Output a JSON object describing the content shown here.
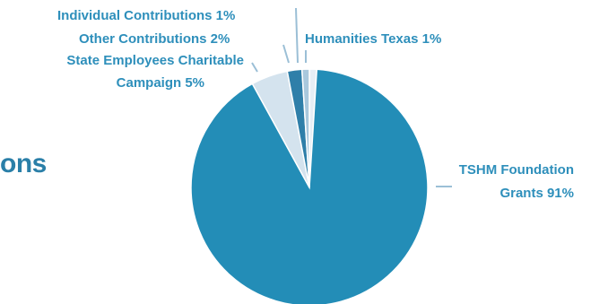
{
  "page": {
    "partial_heading": "ons"
  },
  "colors": {
    "tshm": "#238db7",
    "state": "#d4e3ee",
    "other": "#2f7fa9",
    "individual": "#a9c8dd",
    "humanities": "#e6eef5",
    "label": "#2e8fbb",
    "leader": "#9bbfd6"
  },
  "chart_data": {
    "type": "pie",
    "title": "",
    "slices": [
      {
        "name": "Humanities Texas",
        "percent": 1,
        "label": "Humanities Texas 1%",
        "color_key": "humanities"
      },
      {
        "name": "TSHM Foundation Grants",
        "percent": 91,
        "label_lines": [
          "TSHM Foundation",
          "Grants 91%"
        ],
        "color_key": "tshm"
      },
      {
        "name": "State Employees Charitable Campaign",
        "percent": 5,
        "label_lines": [
          "State Employees Charitable",
          "Campaign 5%"
        ],
        "color_key": "state"
      },
      {
        "name": "Other Contributions",
        "percent": 2,
        "label": "Other Contributions 2%",
        "color_key": "other"
      },
      {
        "name": "Individual Contributions",
        "percent": 1,
        "label": "Individual Contributions 1%",
        "color_key": "individual"
      }
    ]
  }
}
